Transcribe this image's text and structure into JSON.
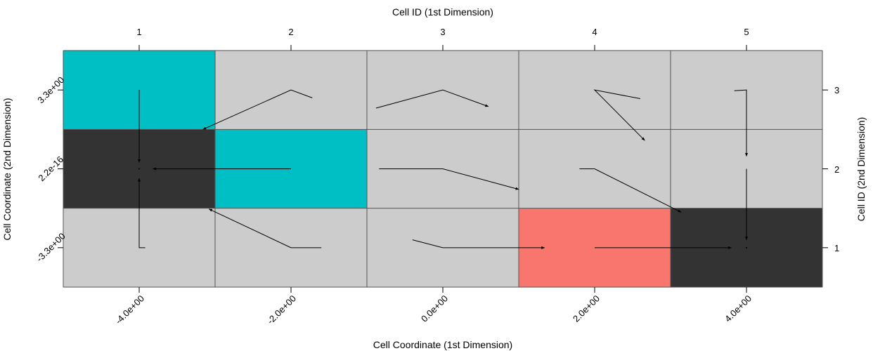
{
  "chart_data": {
    "type": "heatmap",
    "title": "",
    "xlabel_bottom": "Cell Coordinate (1st Dimension)",
    "xlabel_top": "Cell ID (1st Dimension)",
    "ylabel_left": "Cell Coordinate (2nd Dimension)",
    "ylabel_right": "Cell ID (2nd Dimension)",
    "x_coordinate_labels": [
      "-4.0e+00",
      "-2.0e+00",
      "0.0e+00",
      "2.0e+00",
      "4.0e+00"
    ],
    "y_coordinate_labels": [
      "-3.3e+00",
      "2.2e-16",
      "3.3e+00"
    ],
    "x_ids": [
      "1",
      "2",
      "3",
      "4",
      "5"
    ],
    "y_ids": [
      "1",
      "2",
      "3"
    ],
    "colors": {
      "grey": "#cccccc",
      "dark": "#333333",
      "cyan": "#00bfc4",
      "salmon": "#f8766d",
      "grid": "#555555",
      "arrow": "#000000"
    },
    "cells": [
      {
        "col": 1,
        "row": 3,
        "fill": "cyan"
      },
      {
        "col": 2,
        "row": 3,
        "fill": "grey"
      },
      {
        "col": 3,
        "row": 3,
        "fill": "grey"
      },
      {
        "col": 4,
        "row": 3,
        "fill": "grey"
      },
      {
        "col": 5,
        "row": 3,
        "fill": "grey"
      },
      {
        "col": 1,
        "row": 2,
        "fill": "dark"
      },
      {
        "col": 2,
        "row": 2,
        "fill": "cyan"
      },
      {
        "col": 3,
        "row": 2,
        "fill": "grey"
      },
      {
        "col": 4,
        "row": 2,
        "fill": "grey"
      },
      {
        "col": 5,
        "row": 2,
        "fill": "grey"
      },
      {
        "col": 1,
        "row": 1,
        "fill": "grey"
      },
      {
        "col": 2,
        "row": 1,
        "fill": "grey"
      },
      {
        "col": 3,
        "row": 1,
        "fill": "grey"
      },
      {
        "col": 4,
        "row": 1,
        "fill": "salmon"
      },
      {
        "col": 5,
        "row": 1,
        "fill": "dark"
      }
    ],
    "transitions": [
      {
        "name": "c1-r3",
        "points": [
          [
            1.0,
            3.0
          ],
          [
            1.0,
            2.08
          ]
        ]
      },
      {
        "name": "c2-r3",
        "points": [
          [
            2.14,
            2.9
          ],
          [
            2.0,
            3.0
          ],
          [
            1.42,
            2.5
          ]
        ]
      },
      {
        "name": "c3-r3",
        "points": [
          [
            2.56,
            2.77
          ],
          [
            3.0,
            3.0
          ],
          [
            3.3,
            2.79
          ]
        ]
      },
      {
        "name": "c4-r3",
        "points": [
          [
            4.3,
            2.89
          ],
          [
            4.0,
            3.0
          ],
          [
            4.33,
            2.36
          ]
        ]
      },
      {
        "name": "c5-r3",
        "points": [
          [
            4.92,
            2.99
          ],
          [
            5.0,
            3.0
          ],
          [
            5.0,
            2.16
          ]
        ]
      },
      {
        "name": "c1-r2",
        "points": [
          [
            1.0,
            2.0
          ]
        ]
      },
      {
        "name": "c2-r2",
        "points": [
          [
            2.0,
            2.0
          ],
          [
            1.09,
            2.0
          ]
        ]
      },
      {
        "name": "c3-r2",
        "points": [
          [
            3.0,
            2.0
          ],
          [
            2.58,
            2.0
          ],
          [
            3.0,
            2.0
          ],
          [
            3.5,
            1.74
          ]
        ]
      },
      {
        "name": "c4-r2",
        "points": [
          [
            3.9,
            2.0
          ],
          [
            4.0,
            2.0
          ],
          [
            4.57,
            1.45
          ]
        ]
      },
      {
        "name": "c5-r2",
        "points": [
          [
            5.0,
            2.0
          ],
          [
            5.0,
            1.1
          ]
        ]
      },
      {
        "name": "c1-r1",
        "points": [
          [
            1.04,
            1.0
          ],
          [
            1.0,
            1.0
          ],
          [
            1.0,
            1.88
          ]
        ]
      },
      {
        "name": "c2-r1",
        "points": [
          [
            2.2,
            1.0
          ],
          [
            2.0,
            1.0
          ],
          [
            1.46,
            1.49
          ]
        ]
      },
      {
        "name": "c3-r1",
        "points": [
          [
            2.8,
            1.1
          ],
          [
            3.0,
            1.0
          ],
          [
            3.67,
            1.0
          ]
        ]
      },
      {
        "name": "c4-r1",
        "points": [
          [
            4.0,
            1.0
          ],
          [
            4.9,
            1.0
          ]
        ]
      },
      {
        "name": "c5-r1",
        "points": [
          [
            5.0,
            1.0
          ]
        ]
      }
    ]
  }
}
